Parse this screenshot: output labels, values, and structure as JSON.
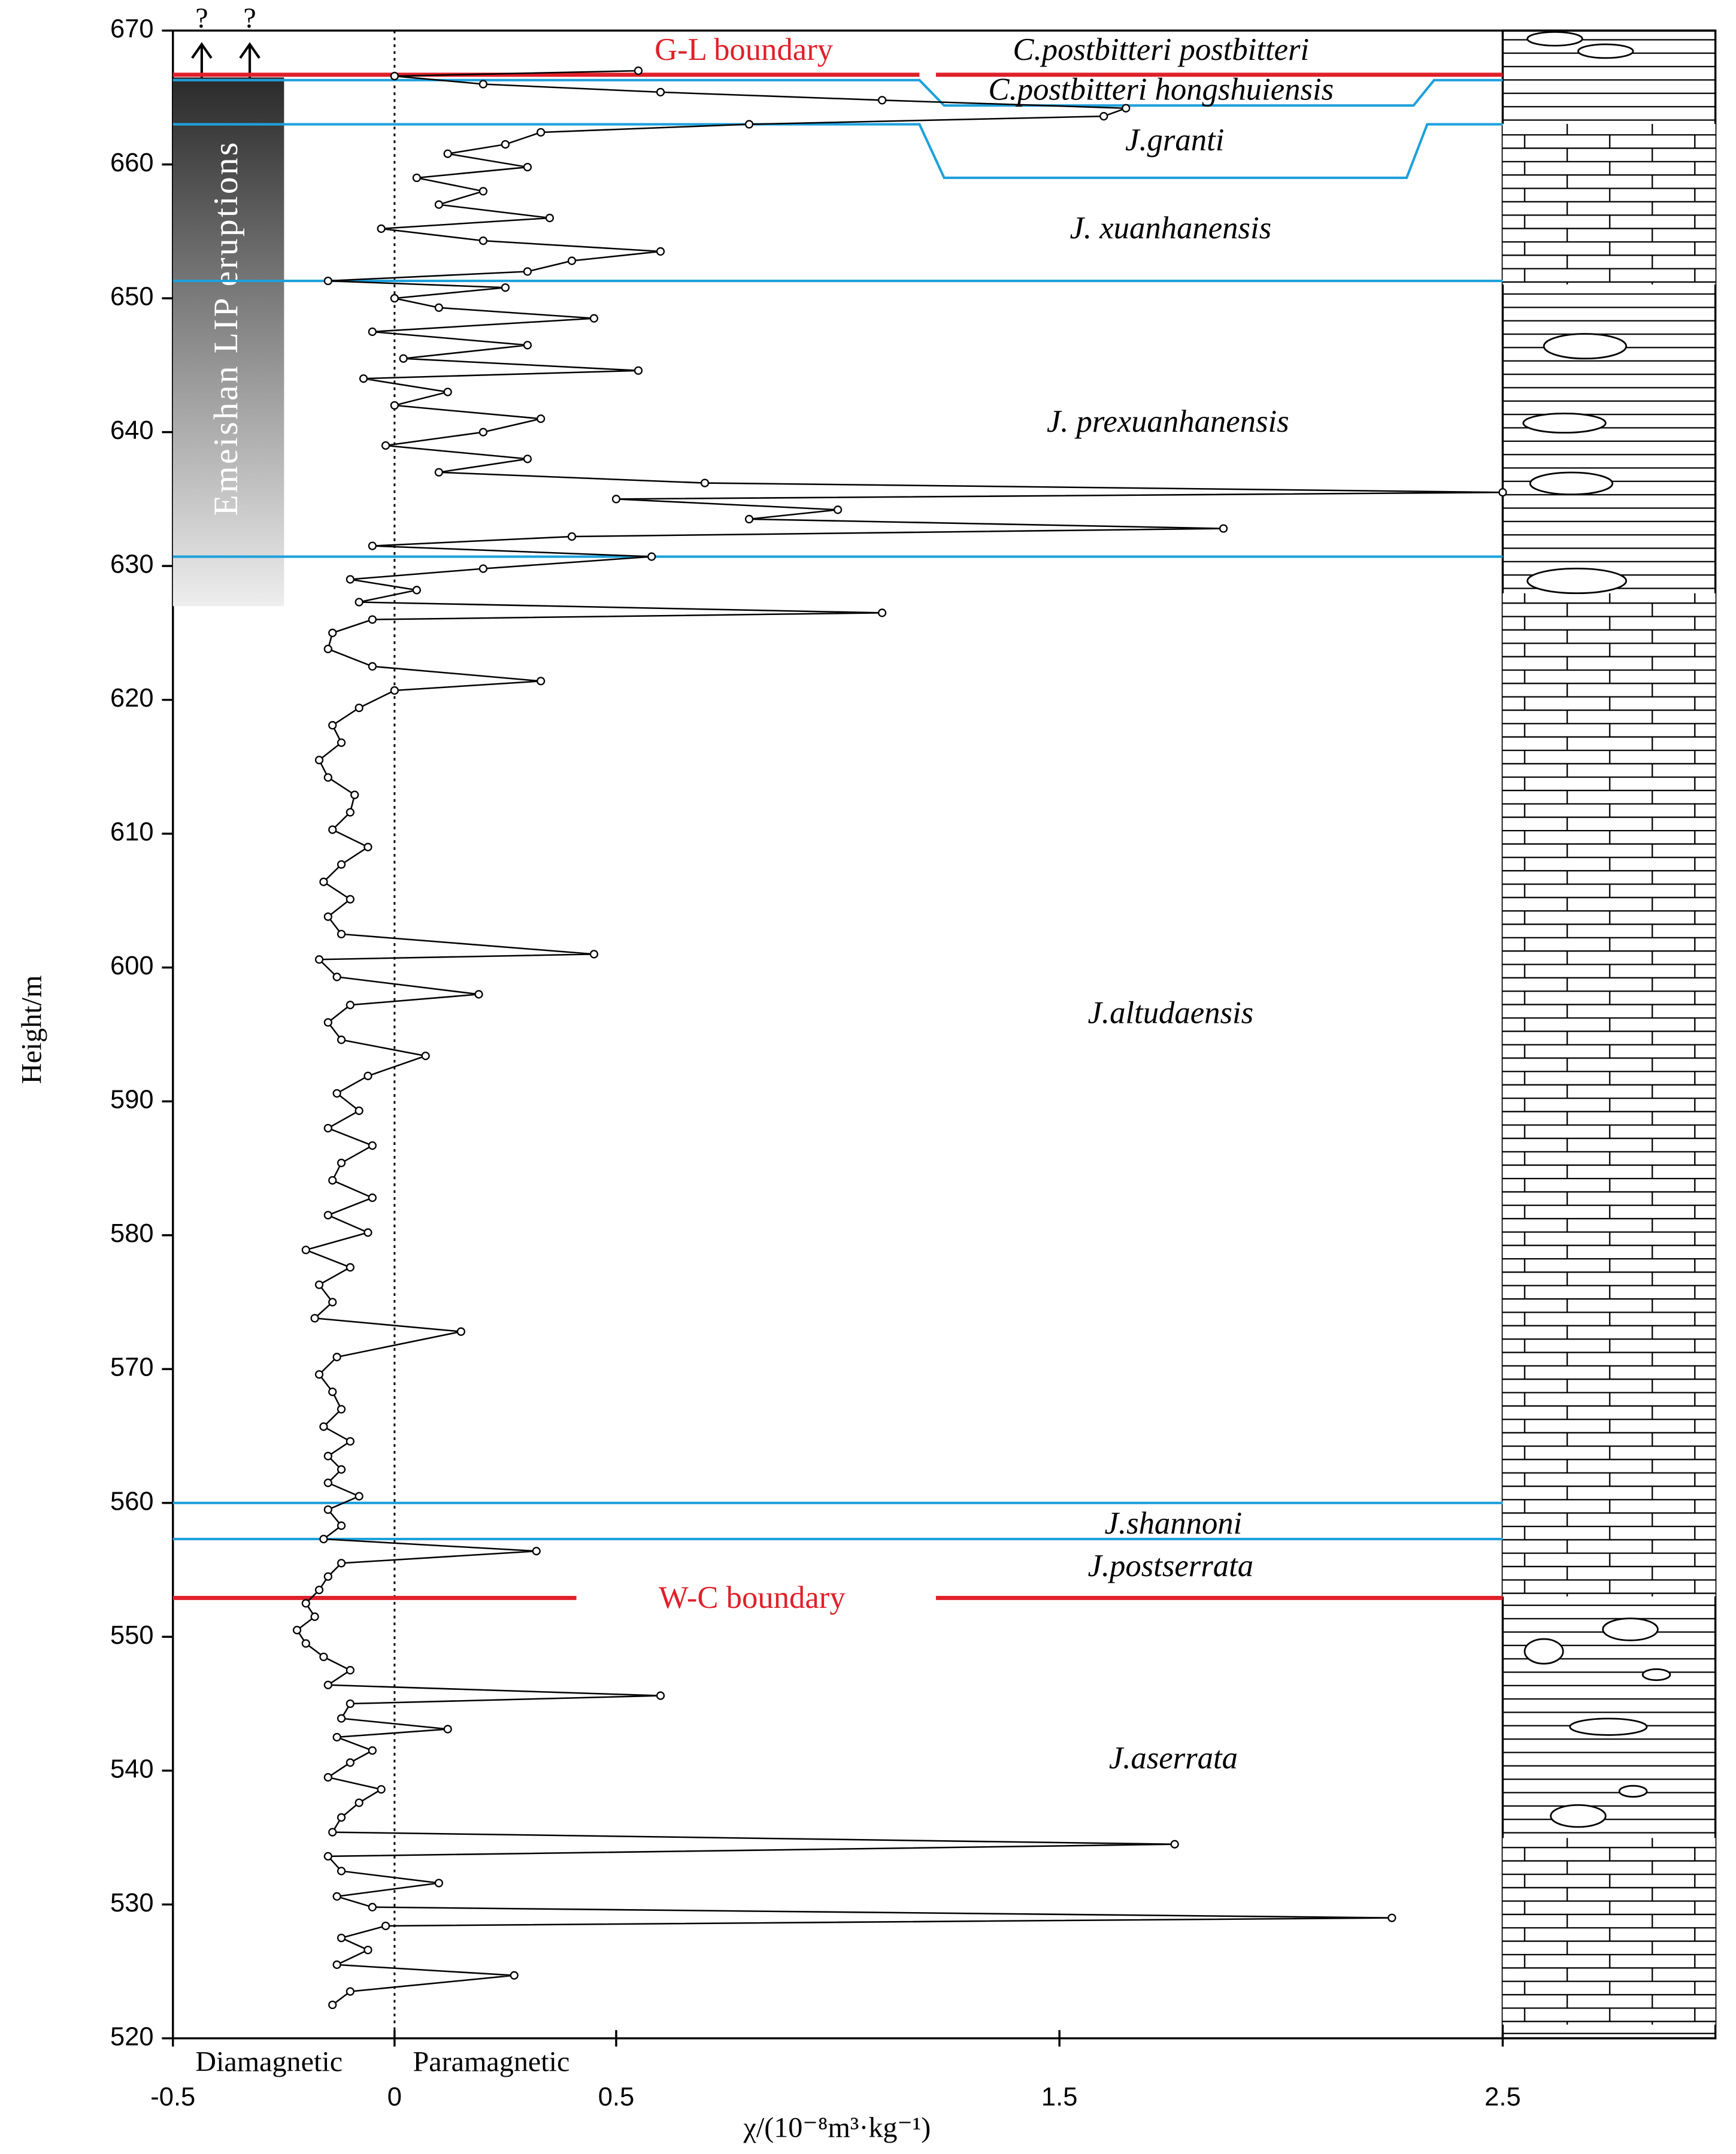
{
  "chart_data": {
    "type": "line",
    "x_label": "χ/(10⁻⁸m³·kg⁻¹)",
    "y_label": "Height/m",
    "xlim": [
      -0.5,
      2.5
    ],
    "ylim": [
      520,
      670
    ],
    "xticks": [
      -0.5,
      0,
      0.5,
      1.5,
      2.5
    ],
    "yticks": [
      520,
      530,
      540,
      550,
      560,
      570,
      580,
      590,
      600,
      610,
      620,
      630,
      640,
      650,
      660,
      670
    ],
    "magnetic_labels": [
      "Diamagnetic",
      "Paramagnetic"
    ],
    "color": "#000000",
    "y": [
      522.5,
      523.5,
      524.7,
      525.5,
      526.6,
      527.5,
      528.4,
      529.0,
      529.8,
      530.6,
      531.6,
      532.5,
      533.6,
      534.5,
      535.4,
      536.5,
      537.6,
      538.6,
      539.5,
      540.6,
      541.5,
      542.5,
      543.1,
      543.9,
      545.0,
      545.6,
      546.4,
      547.5,
      548.5,
      549.5,
      550.5,
      551.5,
      552.5,
      553.5,
      554.5,
      555.5,
      556.4,
      557.3,
      558.3,
      559.5,
      560.5,
      561.5,
      562.5,
      563.5,
      564.6,
      565.7,
      567.0,
      568.3,
      569.6,
      570.9,
      572.8,
      573.8,
      575.0,
      576.3,
      577.6,
      578.9,
      580.2,
      581.5,
      582.8,
      584.1,
      585.4,
      586.7,
      588.0,
      589.3,
      590.6,
      591.9,
      593.4,
      594.6,
      595.9,
      597.2,
      598.0,
      599.3,
      600.6,
      601.0,
      602.5,
      603.8,
      605.1,
      606.4,
      607.7,
      609.0,
      610.3,
      611.6,
      612.9,
      614.2,
      615.5,
      616.8,
      618.1,
      619.4,
      620.7,
      621.4,
      622.5,
      623.8,
      625.0,
      626.0,
      626.5,
      627.3,
      628.2,
      629.0,
      629.8,
      630.7,
      631.5,
      632.2,
      632.8,
      633.5,
      634.2,
      635.0,
      635.5,
      636.2,
      637.0,
      638.0,
      639.0,
      640.0,
      641.0,
      642.0,
      643.0,
      644.0,
      644.6,
      645.5,
      646.5,
      647.5,
      648.5,
      649.3,
      650.0,
      650.8,
      651.3,
      652.0,
      652.8,
      653.5,
      654.3,
      655.2,
      656.0,
      657.0,
      658.0,
      659.0,
      659.8,
      660.8,
      661.5,
      662.4,
      663.0,
      663.6,
      664.2,
      664.8,
      665.4,
      666.0,
      666.6,
      667.0
    ],
    "x": [
      -0.14,
      -0.1,
      0.27,
      -0.13,
      -0.06,
      -0.12,
      -0.02,
      2.25,
      -0.05,
      -0.13,
      0.1,
      -0.12,
      -0.15,
      1.76,
      -0.14,
      -0.12,
      -0.08,
      -0.03,
      -0.15,
      -0.1,
      -0.05,
      -0.13,
      0.12,
      -0.12,
      -0.1,
      0.6,
      -0.15,
      -0.1,
      -0.16,
      -0.2,
      -0.22,
      -0.18,
      -0.2,
      -0.17,
      -0.15,
      -0.12,
      0.32,
      -0.16,
      -0.12,
      -0.15,
      -0.08,
      -0.15,
      -0.12,
      -0.15,
      -0.1,
      -0.16,
      -0.12,
      -0.14,
      -0.17,
      -0.13,
      0.15,
      -0.18,
      -0.14,
      -0.17,
      -0.1,
      -0.2,
      -0.06,
      -0.15,
      -0.05,
      -0.14,
      -0.12,
      -0.05,
      -0.15,
      -0.08,
      -0.13,
      -0.06,
      0.07,
      -0.12,
      -0.15,
      -0.1,
      0.19,
      -0.13,
      -0.17,
      0.45,
      -0.12,
      -0.15,
      -0.1,
      -0.16,
      -0.12,
      -0.06,
      -0.14,
      -0.1,
      -0.09,
      -0.15,
      -0.17,
      -0.12,
      -0.14,
      -0.08,
      0.0,
      0.33,
      -0.05,
      -0.15,
      -0.14,
      -0.05,
      1.1,
      -0.08,
      0.05,
      -0.1,
      0.2,
      0.58,
      -0.05,
      0.4,
      1.87,
      0.8,
      1.0,
      0.5,
      2.5,
      0.7,
      0.1,
      0.3,
      -0.02,
      0.2,
      0.33,
      0.0,
      0.12,
      -0.07,
      0.55,
      0.02,
      0.3,
      -0.05,
      0.45,
      0.1,
      0.0,
      0.25,
      -0.15,
      0.3,
      0.4,
      0.6,
      0.2,
      -0.03,
      0.35,
      0.1,
      0.2,
      0.05,
      0.3,
      0.12,
      0.25,
      0.33,
      0.8,
      1.6,
      1.65,
      1.1,
      0.6,
      0.2,
      0.0,
      0.55
    ],
    "zones": [
      "C.postbitteri postbitteri",
      "C.postbitteri hongshuiensis",
      "J.granti",
      "J. xuanhanensis",
      "J. prexuanhanensis",
      "J.altudaensis",
      "J.shannoni",
      "J.postserrata",
      "J.aserrata"
    ],
    "zone_lines": [
      666.3,
      663,
      651.3,
      630.7,
      560,
      557.3
    ],
    "boundaries": [
      {
        "label": "G-L boundary",
        "height": 666.7
      },
      {
        "label": "W-C boundary",
        "height": 552.9
      }
    ],
    "eruptions": {
      "label": "Emeishan LIP eruptions",
      "span": [
        627,
        666.5
      ]
    },
    "uncertain_marks": [
      "?",
      "?"
    ]
  }
}
